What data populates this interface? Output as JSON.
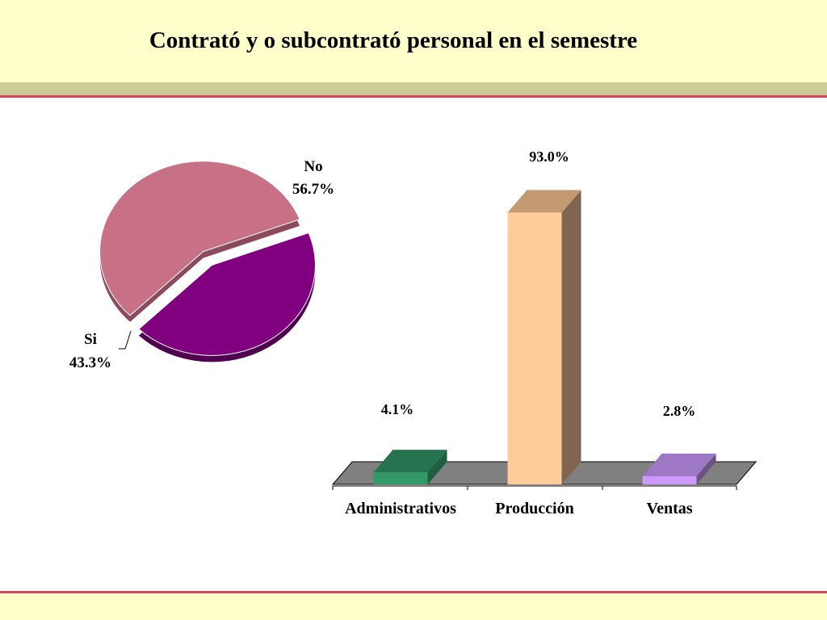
{
  "slide": {
    "title": "Contrató y o subcontrató personal en el semestre"
  },
  "colors": {
    "header_bg": "#ffffcc",
    "band_green": "#cccc99",
    "band_red": "#d6455a"
  },
  "chart_data": [
    {
      "type": "pie",
      "style": "3d-exploded",
      "slices": [
        {
          "label": "No",
          "value": 56.7,
          "value_label": "56.7%",
          "color": "#c87086",
          "side_color": "#8c4b5c"
        },
        {
          "label": "Si",
          "value": 43.3,
          "value_label": "43.3%",
          "color": "#800080",
          "side_color": "#4f004f"
        }
      ]
    },
    {
      "type": "bar",
      "style": "3d",
      "categories": [
        "Administrativos",
        "Producción",
        "Ventas"
      ],
      "values": [
        4.1,
        93.0,
        2.8
      ],
      "value_labels": [
        "4.1%",
        "93.0%",
        "2.8%"
      ],
      "colors": [
        {
          "front": "#339966",
          "top": "#267350",
          "side": "#1f5e40"
        },
        {
          "front": "#ffcc99",
          "top": "#c49a73",
          "side": "#806650"
        },
        {
          "front": "#cc99ff",
          "top": "#9d78c4",
          "side": "#6b5280"
        }
      ],
      "ylim": [
        0,
        100
      ],
      "grid": false,
      "legend": "none"
    }
  ]
}
